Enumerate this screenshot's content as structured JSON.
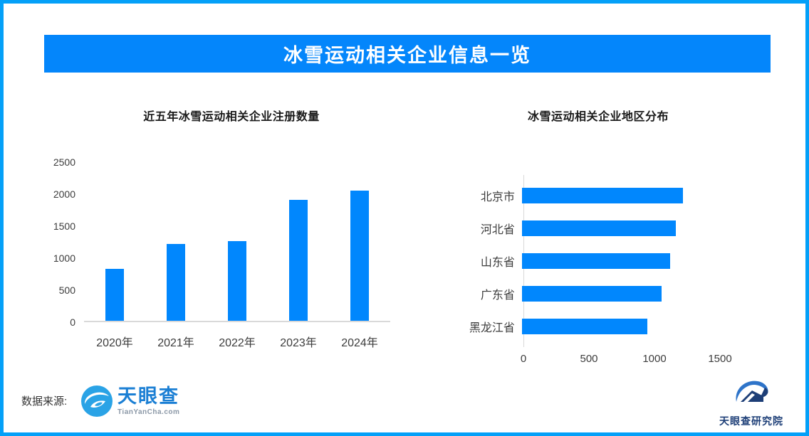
{
  "banner": {
    "title": "冰雪运动相关企业信息一览"
  },
  "chart_data": [
    {
      "type": "bar",
      "orientation": "vertical",
      "title": "近五年冰雪运动相关企业注册数量",
      "categories": [
        "2020年",
        "2021年",
        "2022年",
        "2023年",
        "2024年"
      ],
      "values": [
        820,
        1210,
        1255,
        1905,
        2055
      ],
      "ylim": [
        0,
        2500
      ],
      "yticks": [
        0,
        500,
        1000,
        1500,
        2000,
        2500
      ],
      "grid": false,
      "legend": "none"
    },
    {
      "type": "bar",
      "orientation": "horizontal",
      "title": "冰雪运动相关企业地区分布",
      "categories": [
        "北京市",
        "河北省",
        "山东省",
        "广东省",
        "黑龙江省"
      ],
      "values": [
        1260,
        1200,
        1155,
        1090,
        980
      ],
      "xlim": [
        0,
        1875
      ],
      "xticks": [
        0,
        500,
        1000,
        1500
      ],
      "grid": false,
      "legend": "none"
    }
  ],
  "footer": {
    "source_label": "数据来源:",
    "tianyancha": {
      "name": "天眼查",
      "domain": "TianYanCha.com"
    },
    "research": {
      "name": "天眼查研究院"
    }
  },
  "colors": {
    "border": "#04A0F8",
    "banner": "#0486FB",
    "bar": "#0187FD",
    "axis_line": "#d9d9d9",
    "tyc_blue": "#1B7FD4",
    "tyc_icon_blue": "#2AA3E6",
    "research_navy": "#1D3E77",
    "research_blue": "#2E74C9"
  }
}
